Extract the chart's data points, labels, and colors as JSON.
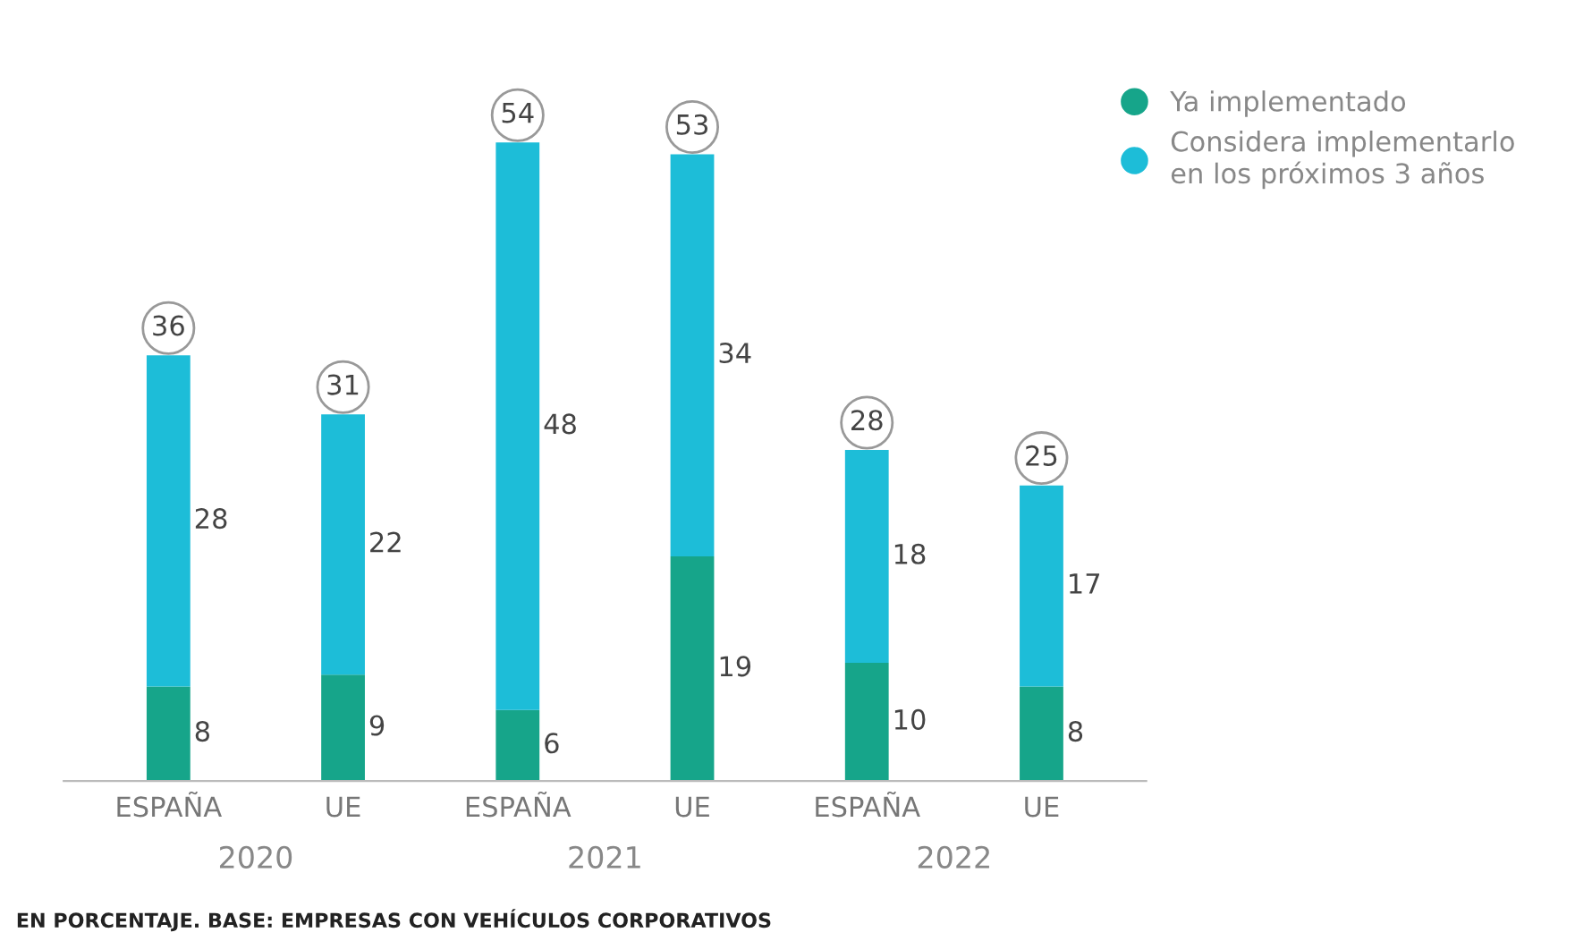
{
  "chart_data": {
    "type": "bar",
    "stacked": true,
    "data_labels": true,
    "legend": "top right",
    "grid": false,
    "categories": [
      "ESPAÑA",
      "UE",
      "ESPAÑA",
      "UE",
      "ESPAÑA",
      "UE"
    ],
    "series": [
      {
        "name": "Ya implementado",
        "color": "#16a58a",
        "values": [
          8,
          9,
          6,
          19,
          10,
          8
        ]
      },
      {
        "name": "Considera implementarlo\nen los próximos 3 años",
        "color": "#1dbdd8",
        "values": [
          28,
          22,
          48,
          34,
          18,
          17
        ]
      }
    ],
    "totals": [
      "36",
      "31",
      "54",
      "53",
      "28",
      "25"
    ],
    "annotations": [
      "2020",
      "2021",
      "2022",
      "EN PORCENTAJE. BASE: EMPRESAS CON VEHÍCULOS CORPORATIVOS"
    ]
  }
}
